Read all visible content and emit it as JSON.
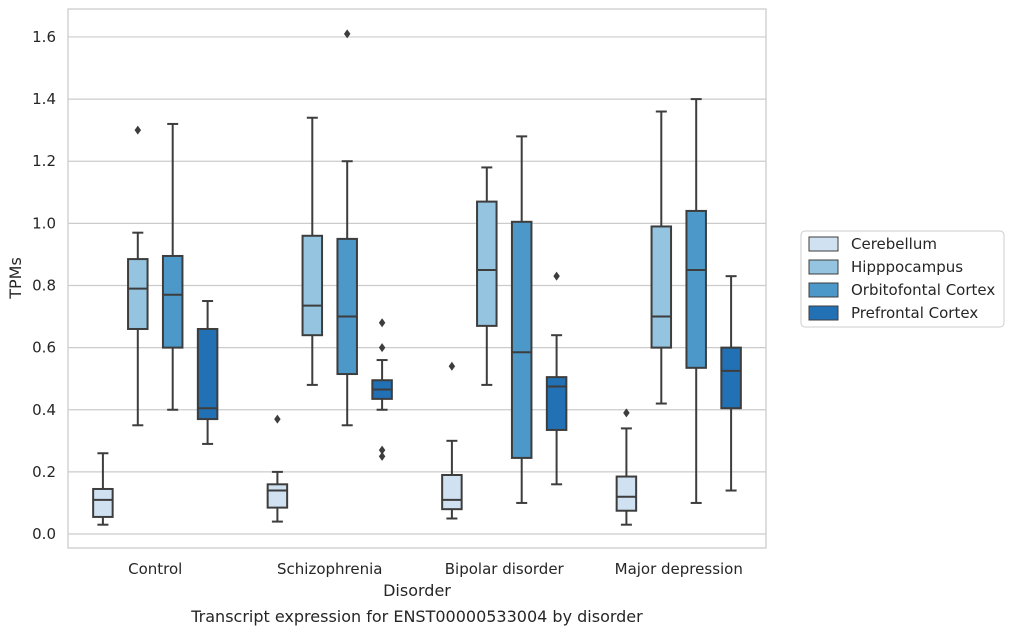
{
  "chart_data": {
    "type": "box",
    "caption": "Transcript expression for ENST00000533004 by disorder",
    "xlabel": "Disorder",
    "ylabel": "TPMs",
    "ylim": [
      -0.045,
      1.69
    ],
    "yticks": [
      "0.0",
      "0.2",
      "0.4",
      "0.6",
      "0.8",
      "1.0",
      "1.2",
      "1.4",
      "1.6"
    ],
    "grid": "horizontal",
    "legend_position": "right",
    "categories": [
      "Control",
      "Schizophrenia",
      "Bipolar disorder",
      "Major depression"
    ],
    "series": [
      {
        "name": "Cerebellum",
        "color": "#d0e1f2",
        "boxes": [
          {
            "whislo": 0.03,
            "q1": 0.055,
            "med": 0.11,
            "q3": 0.145,
            "whishi": 0.26,
            "fliers": []
          },
          {
            "whislo": 0.04,
            "q1": 0.085,
            "med": 0.14,
            "q3": 0.16,
            "whishi": 0.2,
            "fliers": [
              0.37
            ]
          },
          {
            "whislo": 0.05,
            "q1": 0.08,
            "med": 0.11,
            "q3": 0.19,
            "whishi": 0.3,
            "fliers": [
              0.54
            ]
          },
          {
            "whislo": 0.03,
            "q1": 0.075,
            "med": 0.12,
            "q3": 0.185,
            "whishi": 0.34,
            "fliers": [
              0.39
            ]
          }
        ]
      },
      {
        "name": "Hipppocampus",
        "color": "#94c4df",
        "boxes": [
          {
            "whislo": 0.35,
            "q1": 0.66,
            "med": 0.79,
            "q3": 0.885,
            "whishi": 0.97,
            "fliers": [
              1.3
            ]
          },
          {
            "whislo": 0.48,
            "q1": 0.64,
            "med": 0.735,
            "q3": 0.96,
            "whishi": 1.34,
            "fliers": []
          },
          {
            "whislo": 0.48,
            "q1": 0.67,
            "med": 0.85,
            "q3": 1.07,
            "whishi": 1.18,
            "fliers": []
          },
          {
            "whislo": 0.42,
            "q1": 0.6,
            "med": 0.7,
            "q3": 0.99,
            "whishi": 1.36,
            "fliers": []
          }
        ]
      },
      {
        "name": "Orbitofontal Cortex",
        "color": "#4b98c9",
        "boxes": [
          {
            "whislo": 0.4,
            "q1": 0.6,
            "med": 0.77,
            "q3": 0.895,
            "whishi": 1.32,
            "fliers": []
          },
          {
            "whislo": 0.35,
            "q1": 0.515,
            "med": 0.7,
            "q3": 0.95,
            "whishi": 1.2,
            "fliers": [
              1.61
            ]
          },
          {
            "whislo": 0.1,
            "q1": 0.245,
            "med": 0.585,
            "q3": 1.005,
            "whishi": 1.28,
            "fliers": []
          },
          {
            "whislo": 0.1,
            "q1": 0.535,
            "med": 0.85,
            "q3": 1.04,
            "whishi": 1.4,
            "fliers": []
          }
        ]
      },
      {
        "name": "Prefrontal Cortex",
        "color": "#2271b5",
        "boxes": [
          {
            "whislo": 0.29,
            "q1": 0.37,
            "med": 0.405,
            "q3": 0.66,
            "whishi": 0.75,
            "fliers": []
          },
          {
            "whislo": 0.4,
            "q1": 0.435,
            "med": 0.465,
            "q3": 0.495,
            "whishi": 0.56,
            "fliers": [
              0.68,
              0.6,
              0.27,
              0.25
            ]
          },
          {
            "whislo": 0.16,
            "q1": 0.335,
            "med": 0.475,
            "q3": 0.505,
            "whishi": 0.64,
            "fliers": [
              0.83
            ]
          },
          {
            "whislo": 0.14,
            "q1": 0.405,
            "med": 0.525,
            "q3": 0.6,
            "whishi": 0.83,
            "fliers": []
          }
        ]
      }
    ]
  }
}
